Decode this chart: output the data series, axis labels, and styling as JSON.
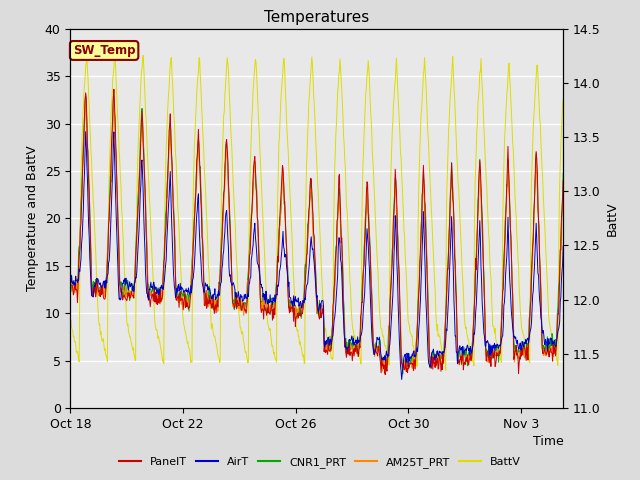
{
  "title": "Temperatures",
  "xlabel": "Time",
  "ylabel_left": "Temperature and BattV",
  "ylabel_right": "BattV",
  "ylim_left": [
    0,
    40
  ],
  "ylim_right": [
    11.0,
    14.5
  ],
  "xtick_labels": [
    "Oct 18",
    "Oct 22",
    "Oct 26",
    "Oct 30",
    "Nov 3"
  ],
  "xtick_days": [
    0,
    4,
    8,
    12,
    16
  ],
  "annotation_text": "SW_Temp",
  "annotation_color": "#8B0000",
  "annotation_bg": "#FFFF99",
  "annotation_border": "#8B0000",
  "series_colors": {
    "PanelT": "#CC0000",
    "AirT": "#0000CC",
    "CNR1_PRT": "#00AA00",
    "AM25T_PRT": "#FF8800",
    "BattV": "#DDDD00"
  },
  "background_color": "#DCDCDC",
  "plot_bg_color": "#E8E8E8",
  "grid_color": "#FFFFFF",
  "title_fontsize": 11,
  "axis_fontsize": 9,
  "xlim": [
    0,
    17.5
  ]
}
